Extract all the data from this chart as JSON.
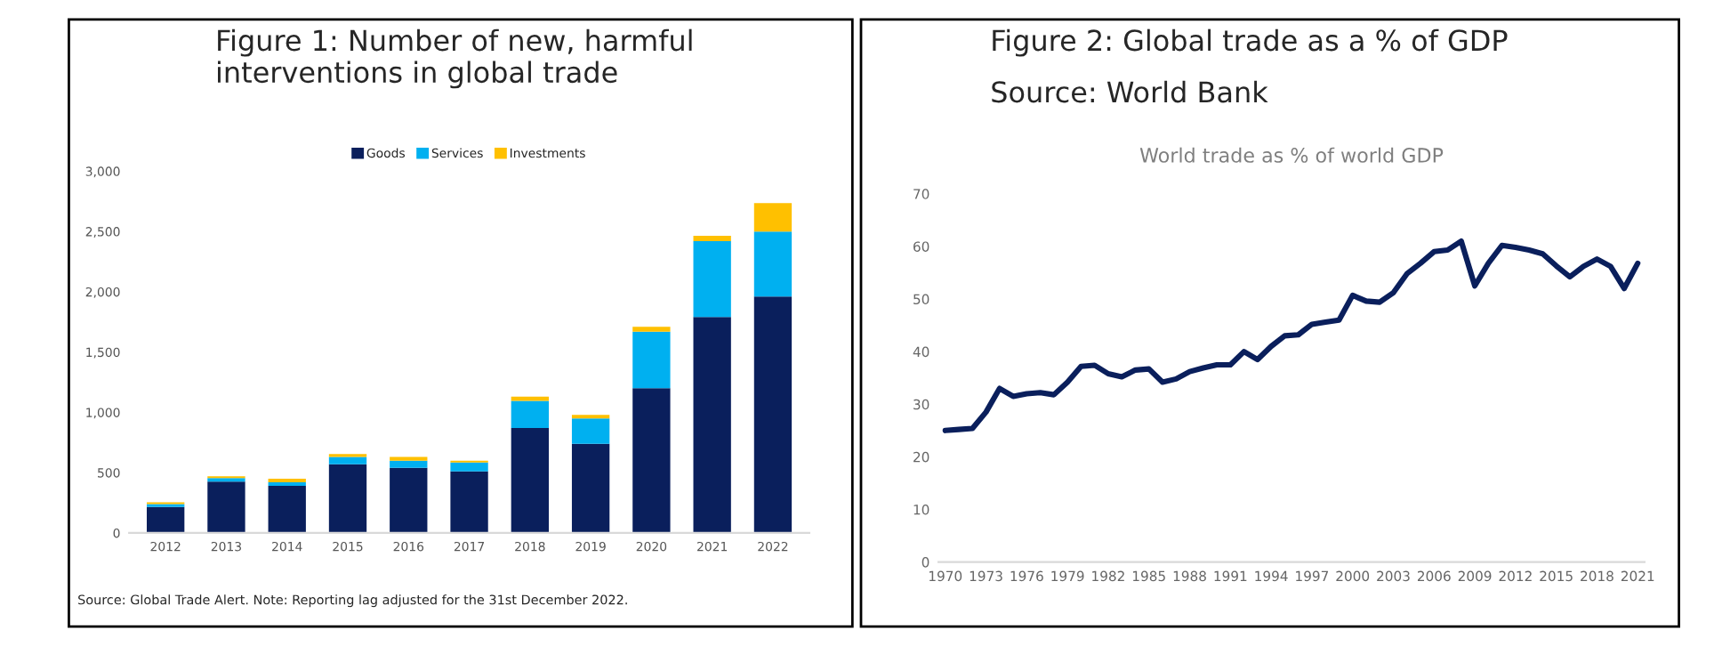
{
  "chart_data": [
    {
      "type": "bar",
      "title": "Figure 1: Number of new, harmful interventions in global trade",
      "stacked": true,
      "legend": "top",
      "grid": false,
      "categories": [
        "2012",
        "2013",
        "2014",
        "2015",
        "2016",
        "2017",
        "2018",
        "2019",
        "2020",
        "2021",
        "2022"
      ],
      "series": [
        {
          "name": "Goods",
          "color": "#0a1f5c",
          "values": [
            215,
            425,
            390,
            570,
            540,
            510,
            870,
            740,
            1200,
            1790,
            1960
          ]
        },
        {
          "name": "Services",
          "color": "#00b0f0",
          "values": [
            25,
            30,
            30,
            60,
            60,
            75,
            225,
            210,
            470,
            630,
            540
          ]
        },
        {
          "name": "Investments",
          "color": "#ffc000",
          "values": [
            15,
            15,
            30,
            25,
            30,
            15,
            35,
            30,
            40,
            45,
            235
          ]
        }
      ],
      "ylim": [
        0,
        3000
      ],
      "yticks": [
        0,
        500,
        {
          "value": 1000,
          "label": "1,000"
        },
        {
          "value": 1500,
          "label": "1,500"
        },
        {
          "value": 2000,
          "label": "2,000"
        },
        {
          "value": 2500,
          "label": "2,500"
        },
        {
          "value": 3000,
          "label": "3,000"
        }
      ],
      "annotations": [
        "Source: Global Trade Alert. Note: Reporting lag adjusted for the 31st December 2022."
      ]
    },
    {
      "type": "line",
      "title": "Figure 2: Global trade as a % of GDP",
      "subtitle": "World trade as % of world GDP",
      "grid": false,
      "legend": false,
      "line_style": "solid",
      "marker": "none",
      "x": [
        1970,
        1971,
        1972,
        1973,
        1974,
        1975,
        1976,
        1977,
        1978,
        1979,
        1980,
        1981,
        1982,
        1983,
        1984,
        1985,
        1986,
        1987,
        1988,
        1989,
        1990,
        1991,
        1992,
        1993,
        1994,
        1995,
        1996,
        1997,
        1998,
        1999,
        2000,
        2001,
        2002,
        2003,
        2004,
        2005,
        2006,
        2007,
        2008,
        2009,
        2010,
        2011,
        2012,
        2013,
        2014,
        2015,
        2016,
        2017,
        2018,
        2019,
        2020,
        2021
      ],
      "series": [
        {
          "color": "#0a1f5c",
          "values": [
            25,
            25.2,
            25.4,
            28.5,
            33,
            31.5,
            32,
            32.2,
            31.8,
            34.2,
            37.2,
            37.4,
            35.8,
            35.2,
            36.5,
            36.7,
            34.2,
            34.8,
            36.2,
            36.9,
            37.5,
            37.5,
            40,
            38.5,
            41,
            43,
            43.2,
            45.2,
            45.6,
            46,
            50.7,
            49.6,
            49.4,
            51.2,
            54.8,
            56.8,
            59,
            59.3,
            61,
            52.5,
            56.8,
            60.2,
            59.8,
            59.3,
            58.6,
            56.3,
            54.2,
            56.2,
            57.6,
            56.2,
            52,
            56.8
          ]
        }
      ],
      "xlim": [
        1969.5,
        2021.5
      ],
      "xticks": [
        1970,
        1973,
        1976,
        1979,
        1982,
        1985,
        1988,
        1991,
        1994,
        1997,
        2000,
        2003,
        2006,
        2009,
        2012,
        2015,
        2018,
        2021
      ],
      "ylim": [
        0,
        70
      ],
      "yticks": [
        0,
        10,
        20,
        30,
        40,
        50,
        60,
        70
      ],
      "annotations": [
        "Source: World Bank"
      ]
    }
  ]
}
